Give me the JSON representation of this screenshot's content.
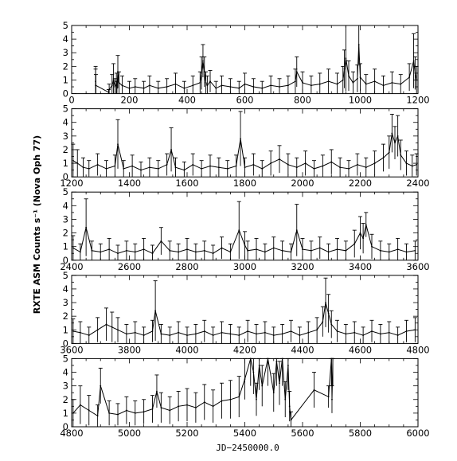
{
  "chart_data": {
    "type": "line",
    "xlabel": "JD−2450000.0",
    "ylabel": "RXTE ASM Counts s⁻¹ (Nova Oph 77)",
    "yticks": [
      0,
      1,
      2,
      3,
      4,
      5
    ],
    "error_bars": true,
    "panels": [
      {
        "xlim": [
          0,
          1200
        ],
        "ylim": [
          0,
          5
        ],
        "xticks": [
          0,
          200,
          400,
          600,
          800,
          1000,
          1200
        ],
        "x": [
          83,
          83,
          84,
          128,
          130,
          140,
          145,
          150,
          155,
          157,
          160,
          164,
          175,
          200,
          220,
          250,
          270,
          300,
          330,
          360,
          390,
          420,
          445,
          450,
          455,
          460,
          465,
          470,
          480,
          500,
          520,
          550,
          580,
          600,
          630,
          660,
          690,
          720,
          750,
          775,
          780,
          800,
          830,
          860,
          890,
          920,
          940,
          945,
          950,
          960,
          975,
          990,
          995,
          1000,
          1020,
          1050,
          1080,
          1110,
          1140,
          1170,
          1185,
          1190,
          1195
        ],
        "y": [
          0.6,
          0.9,
          0.6,
          0.1,
          0.3,
          0.6,
          1.0,
          0.5,
          0.7,
          0.4,
          1.6,
          0.8,
          0.6,
          0.4,
          0.5,
          0.4,
          0.6,
          0.4,
          0.5,
          0.7,
          0.4,
          0.6,
          0.8,
          1.5,
          2.4,
          1.6,
          0.8,
          0.6,
          0.9,
          0.4,
          0.6,
          0.5,
          0.4,
          0.7,
          0.5,
          0.4,
          0.6,
          0.5,
          0.6,
          0.9,
          1.6,
          0.8,
          0.6,
          0.7,
          0.9,
          0.7,
          1.0,
          1.8,
          2.6,
          1.3,
          0.8,
          1.1,
          3.6,
          1.2,
          0.7,
          0.9,
          0.6,
          0.8,
          0.7,
          1.2,
          2.4,
          1.5,
          1.0
        ],
        "err": [
          1.2,
          1.1,
          0.8,
          0.2,
          0.4,
          0.8,
          1.2,
          0.6,
          0.8,
          0.5,
          1.2,
          0.8,
          0.7,
          0.5,
          0.6,
          0.5,
          0.7,
          0.5,
          0.6,
          0.8,
          0.5,
          0.7,
          0.8,
          1.2,
          1.2,
          1.1,
          0.8,
          0.7,
          0.8,
          0.5,
          0.7,
          0.6,
          0.5,
          0.8,
          0.6,
          0.5,
          0.7,
          0.6,
          0.7,
          0.9,
          1.1,
          0.8,
          0.7,
          0.8,
          0.9,
          0.8,
          1.0,
          1.4,
          2.4,
          1.1,
          0.8,
          1.0,
          1.4,
          1.0,
          0.7,
          0.9,
          0.7,
          0.8,
          0.7,
          1.0,
          2.0,
          1.2,
          1.0
        ]
      },
      {
        "xlim": [
          1200,
          2400
        ],
        "ylim": [
          0,
          5
        ],
        "xticks": [
          1200,
          1400,
          1600,
          1800,
          2000,
          2200,
          2400
        ],
        "x": [
          1205,
          1220,
          1240,
          1260,
          1290,
          1320,
          1350,
          1360,
          1380,
          1410,
          1440,
          1470,
          1500,
          1530,
          1545,
          1560,
          1590,
          1620,
          1650,
          1680,
          1710,
          1740,
          1770,
          1785,
          1800,
          1830,
          1860,
          1890,
          1920,
          1950,
          1980,
          2010,
          2040,
          2070,
          2100,
          2130,
          2160,
          2190,
          2220,
          2250,
          2280,
          2300,
          2310,
          2320,
          2330,
          2340,
          2360,
          2380,
          2395
        ],
        "y": [
          1.2,
          1.0,
          0.7,
          0.6,
          0.9,
          0.6,
          0.8,
          2.4,
          0.6,
          0.8,
          0.5,
          0.7,
          0.6,
          0.9,
          2.0,
          0.7,
          0.5,
          0.9,
          0.6,
          0.8,
          0.7,
          0.6,
          0.8,
          2.8,
          0.7,
          0.9,
          0.6,
          1.0,
          1.3,
          0.9,
          0.7,
          1.0,
          0.6,
          0.8,
          1.1,
          0.7,
          0.6,
          0.9,
          0.7,
          1.0,
          1.4,
          1.8,
          3.2,
          2.5,
          3.0,
          1.6,
          1.0,
          0.8,
          0.9
        ],
        "err": [
          1.2,
          1.0,
          0.7,
          0.6,
          0.8,
          0.6,
          0.8,
          1.8,
          0.6,
          0.8,
          0.6,
          0.7,
          0.6,
          0.8,
          1.6,
          0.7,
          0.6,
          0.8,
          0.6,
          0.8,
          0.7,
          0.6,
          0.8,
          2.0,
          0.7,
          0.8,
          0.6,
          0.9,
          1.0,
          0.8,
          0.7,
          0.9,
          0.6,
          0.8,
          0.9,
          0.7,
          0.6,
          0.8,
          0.7,
          0.9,
          1.0,
          1.2,
          1.4,
          1.2,
          1.5,
          1.1,
          0.9,
          0.8,
          0.8
        ]
      },
      {
        "xlim": [
          2400,
          3600
        ],
        "ylim": [
          0,
          5
        ],
        "xticks": [
          2400,
          2600,
          2800,
          3000,
          3200,
          3400,
          3600
        ],
        "x": [
          2405,
          2430,
          2450,
          2470,
          2500,
          2530,
          2560,
          2590,
          2620,
          2650,
          2680,
          2710,
          2740,
          2770,
          2800,
          2830,
          2860,
          2890,
          2920,
          2950,
          2980,
          3000,
          3010,
          3040,
          3070,
          3100,
          3130,
          3160,
          3180,
          3200,
          3230,
          3260,
          3290,
          3320,
          3350,
          3380,
          3400,
          3410,
          3420,
          3440,
          3470,
          3500,
          3530,
          3560,
          3590
        ],
        "y": [
          0.9,
          0.6,
          2.4,
          0.7,
          0.6,
          0.8,
          0.5,
          0.7,
          0.6,
          0.8,
          0.5,
          1.4,
          0.7,
          0.6,
          0.8,
          0.6,
          0.7,
          0.5,
          0.9,
          0.6,
          2.2,
          1.1,
          0.7,
          0.8,
          0.6,
          0.9,
          0.7,
          0.6,
          2.2,
          0.8,
          0.7,
          0.9,
          0.6,
          0.8,
          0.7,
          1.2,
          2.0,
          1.6,
          2.6,
          1.0,
          0.7,
          0.6,
          0.8,
          0.6,
          0.7
        ],
        "err": [
          0.9,
          0.6,
          2.1,
          0.7,
          0.6,
          0.8,
          0.6,
          0.7,
          0.6,
          0.8,
          0.6,
          1.0,
          0.7,
          0.6,
          0.8,
          0.6,
          0.7,
          0.6,
          0.8,
          0.6,
          2.1,
          1.0,
          0.7,
          0.8,
          0.6,
          0.8,
          0.7,
          0.6,
          1.9,
          0.8,
          0.7,
          0.8,
          0.6,
          0.8,
          0.7,
          1.0,
          1.2,
          1.1,
          0.9,
          0.9,
          0.7,
          0.6,
          0.8,
          0.6,
          0.7
        ]
      },
      {
        "xlim": [
          3600,
          4800
        ],
        "ylim": [
          0,
          5
        ],
        "xticks": [
          3600,
          3800,
          4000,
          4200,
          4400,
          4600,
          4800
        ],
        "x": [
          3605,
          3630,
          3660,
          3690,
          3720,
          3740,
          3760,
          3790,
          3820,
          3850,
          3880,
          3890,
          3910,
          3940,
          3970,
          4000,
          4030,
          4060,
          4090,
          4120,
          4150,
          4180,
          4210,
          4240,
          4270,
          4300,
          4330,
          4360,
          4390,
          4420,
          4450,
          4470,
          4480,
          4490,
          4500,
          4520,
          4550,
          4580,
          4610,
          4640,
          4670,
          4700,
          4730,
          4760,
          4790
        ],
        "y": [
          0.9,
          0.8,
          0.6,
          1.0,
          1.4,
          1.2,
          1.0,
          0.7,
          0.8,
          0.6,
          0.9,
          2.4,
          0.7,
          0.6,
          0.8,
          0.6,
          0.7,
          0.9,
          0.6,
          0.8,
          0.7,
          0.6,
          0.9,
          0.7,
          0.8,
          0.6,
          0.7,
          0.9,
          0.6,
          0.8,
          1.0,
          1.6,
          3.0,
          2.2,
          1.4,
          0.9,
          0.7,
          0.8,
          0.6,
          0.9,
          0.7,
          0.8,
          0.6,
          0.9,
          1.0
        ],
        "err": [
          0.9,
          0.8,
          0.6,
          0.9,
          1.2,
          1.1,
          0.9,
          0.7,
          0.8,
          0.6,
          0.8,
          2.2,
          0.7,
          0.6,
          0.8,
          0.6,
          0.7,
          0.8,
          0.6,
          0.8,
          0.7,
          0.6,
          0.8,
          0.7,
          0.8,
          0.6,
          0.7,
          0.8,
          0.6,
          0.8,
          0.9,
          1.1,
          1.8,
          1.4,
          1.0,
          0.8,
          0.7,
          0.8,
          0.6,
          0.8,
          0.7,
          0.8,
          0.6,
          0.8,
          0.9
        ]
      },
      {
        "xlim": [
          4800,
          6000
        ],
        "ylim": [
          0,
          5
        ],
        "xticks": [
          4800,
          5000,
          5200,
          5400,
          5600,
          5800,
          6000
        ],
        "x": [
          4805,
          4830,
          4860,
          4890,
          4900,
          4930,
          4960,
          4990,
          5020,
          5050,
          5080,
          5095,
          5110,
          5140,
          5170,
          5200,
          5230,
          5260,
          5290,
          5320,
          5350,
          5380,
          5400,
          5420,
          5430,
          5440,
          5450,
          5460,
          5480,
          5500,
          5510,
          5520,
          5530,
          5540,
          5550,
          5555,
          5560,
          5640,
          5690,
          5700,
          5702,
          5705
        ],
        "y": [
          1.0,
          1.6,
          1.2,
          0.8,
          3.0,
          1.0,
          0.9,
          1.2,
          1.0,
          1.1,
          1.3,
          2.6,
          1.4,
          1.2,
          1.5,
          1.6,
          1.4,
          1.8,
          1.5,
          1.9,
          2.0,
          2.2,
          3.5,
          5.0,
          4.0,
          2.0,
          4.5,
          3.0,
          5.0,
          2.5,
          4.8,
          3.2,
          5.0,
          2.0,
          4.5,
          1.5,
          0.5,
          2.7,
          2.2,
          5.0,
          2.0,
          5.0
        ],
        "err": [
          1.0,
          1.4,
          1.1,
          0.8,
          1.3,
          0.9,
          0.8,
          1.0,
          0.9,
          0.9,
          1.0,
          1.2,
          1.1,
          1.0,
          1.1,
          1.2,
          1.1,
          1.3,
          1.2,
          1.3,
          1.4,
          1.5,
          1.5,
          2.0,
          1.6,
          1.2,
          1.8,
          1.5,
          2.0,
          1.4,
          1.8,
          1.6,
          2.0,
          1.3,
          1.8,
          1.1,
          0.6,
          1.3,
          0.8,
          2.0,
          1.0,
          2.0
        ]
      }
    ]
  }
}
